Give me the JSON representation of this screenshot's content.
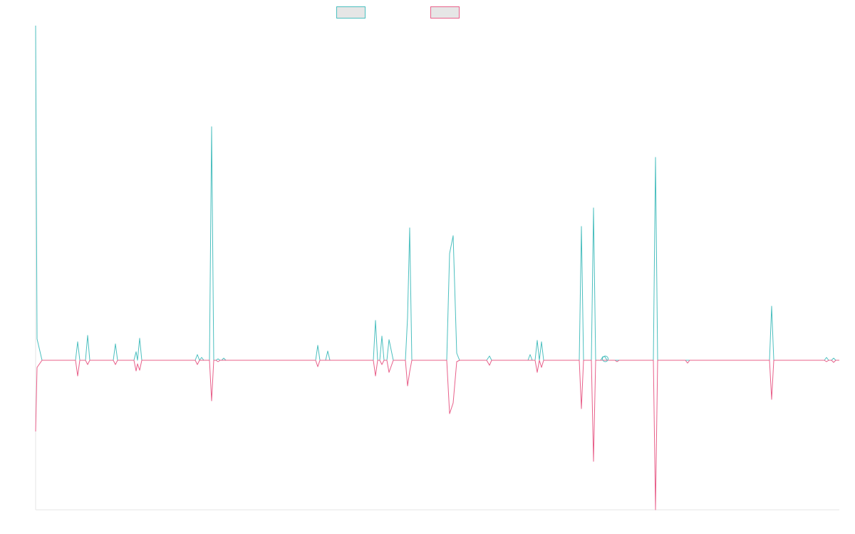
{
  "chart_data": {
    "type": "line",
    "title": "",
    "xlabel": "",
    "ylabel": "",
    "grid": false,
    "legend_position": "top-center",
    "ylim": [
      -210,
      470
    ],
    "x_range": [
      0,
      1128
    ],
    "series": [
      {
        "color": "#4bbfbf",
        "baseline_zero_fill": false,
        "points": [
          [
            0,
            470
          ],
          [
            2,
            30
          ],
          [
            9,
            0
          ],
          [
            56,
            0
          ],
          [
            59,
            26
          ],
          [
            62,
            0
          ],
          [
            70,
            0
          ],
          [
            73,
            35
          ],
          [
            76,
            0
          ],
          [
            109,
            0
          ],
          [
            112,
            23
          ],
          [
            115,
            0
          ],
          [
            138,
            0
          ],
          [
            141,
            12
          ],
          [
            143,
            0
          ],
          [
            146,
            31
          ],
          [
            149,
            0
          ],
          [
            224,
            0
          ],
          [
            227,
            8
          ],
          [
            230,
            0
          ],
          [
            233,
            4
          ],
          [
            236,
            0
          ],
          [
            244,
            0
          ],
          [
            247,
            328
          ],
          [
            250,
            0
          ],
          [
            253,
            0
          ],
          [
            256,
            2
          ],
          [
            259,
            0
          ],
          [
            261,
            0
          ],
          [
            264,
            3
          ],
          [
            267,
            0
          ],
          [
            393,
            0
          ],
          [
            396,
            21
          ],
          [
            399,
            0
          ],
          [
            407,
            0
          ],
          [
            410,
            13
          ],
          [
            413,
            0
          ],
          [
            474,
            0
          ],
          [
            477,
            56
          ],
          [
            480,
            0
          ],
          [
            483,
            0
          ],
          [
            486,
            34
          ],
          [
            489,
            0
          ],
          [
            493,
            0
          ],
          [
            496,
            29
          ],
          [
            502,
            0
          ],
          [
            519,
            0
          ],
          [
            522,
            60
          ],
          [
            525,
            186
          ],
          [
            528,
            0
          ],
          [
            577,
            0
          ],
          [
            581,
            150
          ],
          [
            586,
            175
          ],
          [
            591,
            10
          ],
          [
            595,
            0
          ],
          [
            633,
            0
          ],
          [
            637,
            6
          ],
          [
            640,
            0
          ],
          [
            691,
            0
          ],
          [
            694,
            8
          ],
          [
            697,
            0
          ],
          [
            701,
            0
          ],
          [
            704,
            28
          ],
          [
            707,
            0
          ],
          [
            710,
            26
          ],
          [
            713,
            0
          ],
          [
            763,
            0
          ],
          [
            766,
            188
          ],
          [
            769,
            0
          ],
          [
            780,
            0
          ],
          [
            783,
            214
          ],
          [
            786,
            0
          ],
          [
            793,
            0
          ],
          [
            796,
            5
          ],
          [
            799,
            5
          ],
          [
            802,
            0
          ],
          [
            867,
            0
          ],
          [
            870,
            285
          ],
          [
            873,
            0
          ],
          [
            1030,
            0
          ],
          [
            1033,
            76
          ],
          [
            1036,
            0
          ],
          [
            1107,
            0
          ],
          [
            1110,
            4
          ],
          [
            1113,
            0
          ],
          [
            1117,
            0
          ],
          [
            1120,
            3
          ],
          [
            1123,
            0
          ],
          [
            1128,
            0
          ]
        ]
      },
      {
        "color": "#e8608a",
        "baseline_zero_fill": false,
        "points": [
          [
            0,
            -100
          ],
          [
            2,
            -10
          ],
          [
            9,
            0
          ],
          [
            56,
            0
          ],
          [
            59,
            -22
          ],
          [
            62,
            0
          ],
          [
            70,
            0
          ],
          [
            73,
            -6
          ],
          [
            76,
            0
          ],
          [
            109,
            0
          ],
          [
            112,
            -6
          ],
          [
            115,
            0
          ],
          [
            138,
            0
          ],
          [
            141,
            -15
          ],
          [
            143,
            -5
          ],
          [
            146,
            -14
          ],
          [
            149,
            0
          ],
          [
            224,
            0
          ],
          [
            227,
            -6
          ],
          [
            230,
            0
          ],
          [
            244,
            0
          ],
          [
            247,
            -57
          ],
          [
            250,
            0
          ],
          [
            253,
            0
          ],
          [
            256,
            -2
          ],
          [
            259,
            0
          ],
          [
            393,
            0
          ],
          [
            396,
            -9
          ],
          [
            399,
            0
          ],
          [
            474,
            0
          ],
          [
            477,
            -22
          ],
          [
            480,
            0
          ],
          [
            483,
            0
          ],
          [
            486,
            -6
          ],
          [
            489,
            0
          ],
          [
            493,
            0
          ],
          [
            496,
            -17
          ],
          [
            502,
            0
          ],
          [
            519,
            0
          ],
          [
            522,
            -36
          ],
          [
            525,
            -16
          ],
          [
            528,
            0
          ],
          [
            577,
            0
          ],
          [
            581,
            -75
          ],
          [
            586,
            -60
          ],
          [
            591,
            -2
          ],
          [
            595,
            0
          ],
          [
            633,
            0
          ],
          [
            637,
            -7
          ],
          [
            640,
            0
          ],
          [
            701,
            0
          ],
          [
            704,
            -17
          ],
          [
            707,
            0
          ],
          [
            710,
            -10
          ],
          [
            713,
            0
          ],
          [
            763,
            0
          ],
          [
            766,
            -68
          ],
          [
            769,
            0
          ],
          [
            780,
            0
          ],
          [
            783,
            -142
          ],
          [
            786,
            0
          ],
          [
            813,
            0
          ],
          [
            816,
            -2
          ],
          [
            819,
            0
          ],
          [
            867,
            0
          ],
          [
            870,
            -210
          ],
          [
            873,
            0
          ],
          [
            912,
            0
          ],
          [
            915,
            -4
          ],
          [
            918,
            0
          ],
          [
            1030,
            0
          ],
          [
            1033,
            -55
          ],
          [
            1036,
            0
          ],
          [
            1107,
            0
          ],
          [
            1110,
            -2
          ],
          [
            1113,
            0
          ],
          [
            1117,
            0
          ],
          [
            1120,
            -3
          ],
          [
            1123,
            0
          ],
          [
            1128,
            0
          ]
        ]
      }
    ]
  }
}
